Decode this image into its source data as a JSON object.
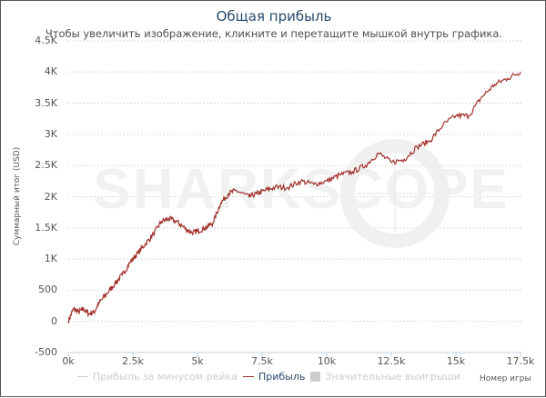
{
  "chart": {
    "title": "Общая прибыль",
    "subtitle": "Чтобы увеличить изображение, кликните и перетащите мышкой внутрь графика.",
    "watermark": "SHARKSCOPE",
    "y_axis_title": "Суммарный итог (USD)",
    "x_axis_title": "Номер игры",
    "y_ticks": [
      "4.5K",
      "4K",
      "3.5K",
      "3K",
      "2.5K",
      "2K",
      "1.5K",
      "1K",
      "500",
      "0",
      "-500"
    ],
    "x_ticks": [
      "0k",
      "2.5k",
      "5k",
      "7.5k",
      "10k",
      "12.5k",
      "15k",
      "17.5k"
    ],
    "legend": [
      {
        "label": "Прибыль за минусом рейка",
        "color": "#cccccc",
        "kind": "line",
        "enabled": false
      },
      {
        "label": "Прибыль",
        "color": "#a0302a",
        "kind": "line",
        "enabled": true
      },
      {
        "label": "Значительные выигрыши",
        "color": "#cccccc",
        "kind": "box",
        "enabled": false
      }
    ]
  },
  "chart_data": {
    "type": "line",
    "title": "Общая прибыль",
    "subtitle": "Чтобы увеличить изображение, кликните и перетащите мышкой внутрь графика.",
    "xlabel": "Номер игры",
    "ylabel": "Суммарный итог (USD)",
    "xlim": [
      0,
      17500
    ],
    "ylim": [
      -500,
      4500
    ],
    "grid": true,
    "legend_position": "bottom",
    "series": [
      {
        "name": "Прибыль",
        "color": "#a0302a",
        "x": [
          0,
          200,
          400,
          600,
          800,
          1000,
          1200,
          1500,
          1800,
          2100,
          2400,
          2700,
          3000,
          3300,
          3600,
          3900,
          4200,
          4500,
          4800,
          5000,
          5300,
          5600,
          5900,
          6200,
          6500,
          7000,
          7300,
          7600,
          8000,
          8500,
          9000,
          9500,
          10000,
          10500,
          11000,
          11500,
          12000,
          12500,
          13000,
          13500,
          14000,
          14500,
          15000,
          15500,
          16000,
          16500,
          17000,
          17500
        ],
        "values": [
          0,
          200,
          150,
          200,
          120,
          150,
          300,
          450,
          600,
          750,
          950,
          1100,
          1250,
          1400,
          1600,
          1650,
          1600,
          1500,
          1420,
          1450,
          1500,
          1580,
          1900,
          2050,
          2100,
          2000,
          2050,
          2100,
          2150,
          2150,
          2250,
          2200,
          2250,
          2350,
          2400,
          2500,
          2700,
          2550,
          2600,
          2800,
          2900,
          3150,
          3300,
          3300,
          3600,
          3800,
          3900,
          4000
        ]
      },
      {
        "name": "Прибыль за минусом рейка",
        "visible": false,
        "values": []
      },
      {
        "name": "Значительные выигрыши",
        "visible": false,
        "values": []
      }
    ]
  }
}
